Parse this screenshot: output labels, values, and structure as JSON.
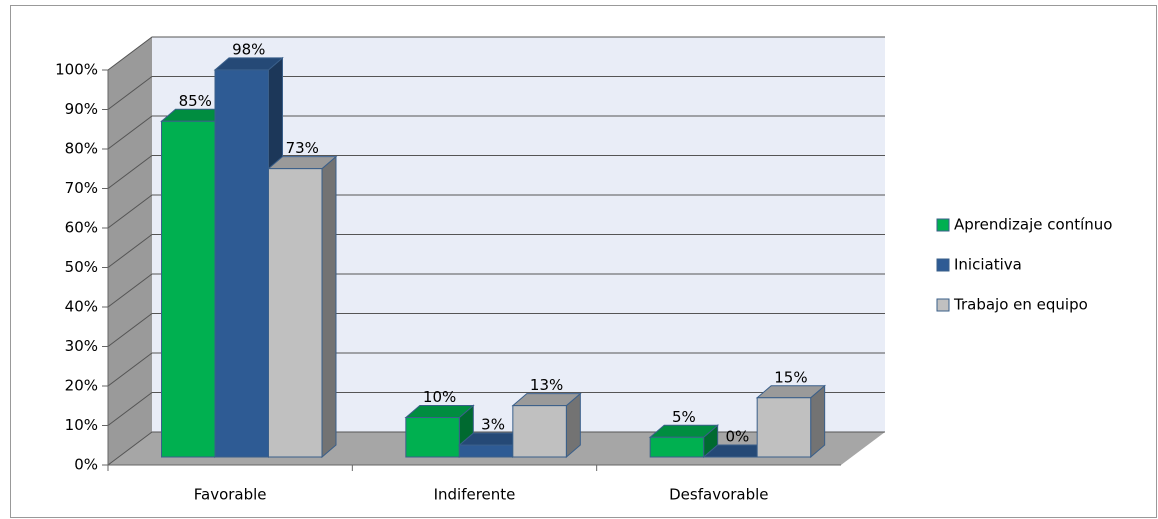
{
  "chart_data": {
    "type": "bar3d",
    "categories": [
      "Favorable",
      "Indiferente",
      "Desfavorable"
    ],
    "series": [
      {
        "name": "Aprendizaje contínuo",
        "color": "#00b050",
        "values": [
          85,
          10,
          5
        ],
        "value_labels": [
          "85%",
          "10%",
          "5%"
        ]
      },
      {
        "name": "Iniciativa",
        "color": "#2e5b94",
        "values": [
          98,
          3,
          0
        ],
        "value_labels": [
          "98%",
          "3%",
          "0%"
        ]
      },
      {
        "name": "Trabajo en equipo",
        "color": "#c0c0c0",
        "values": [
          73,
          13,
          15
        ],
        "value_labels": [
          "73%",
          "13%",
          "15%"
        ]
      }
    ],
    "ylim": [
      0,
      100
    ],
    "yticks": [
      {
        "value": 0,
        "label": "0%"
      },
      {
        "value": 10,
        "label": "10%"
      },
      {
        "value": 20,
        "label": "20%"
      },
      {
        "value": 30,
        "label": "30%"
      },
      {
        "value": 40,
        "label": "40%"
      },
      {
        "value": 50,
        "label": "50%"
      },
      {
        "value": 60,
        "label": "60%"
      },
      {
        "value": 70,
        "label": "70%"
      },
      {
        "value": 80,
        "label": "80%"
      },
      {
        "value": 90,
        "label": "90%"
      },
      {
        "value": 100,
        "label": "100%"
      }
    ],
    "grid": true,
    "legend": "right"
  }
}
